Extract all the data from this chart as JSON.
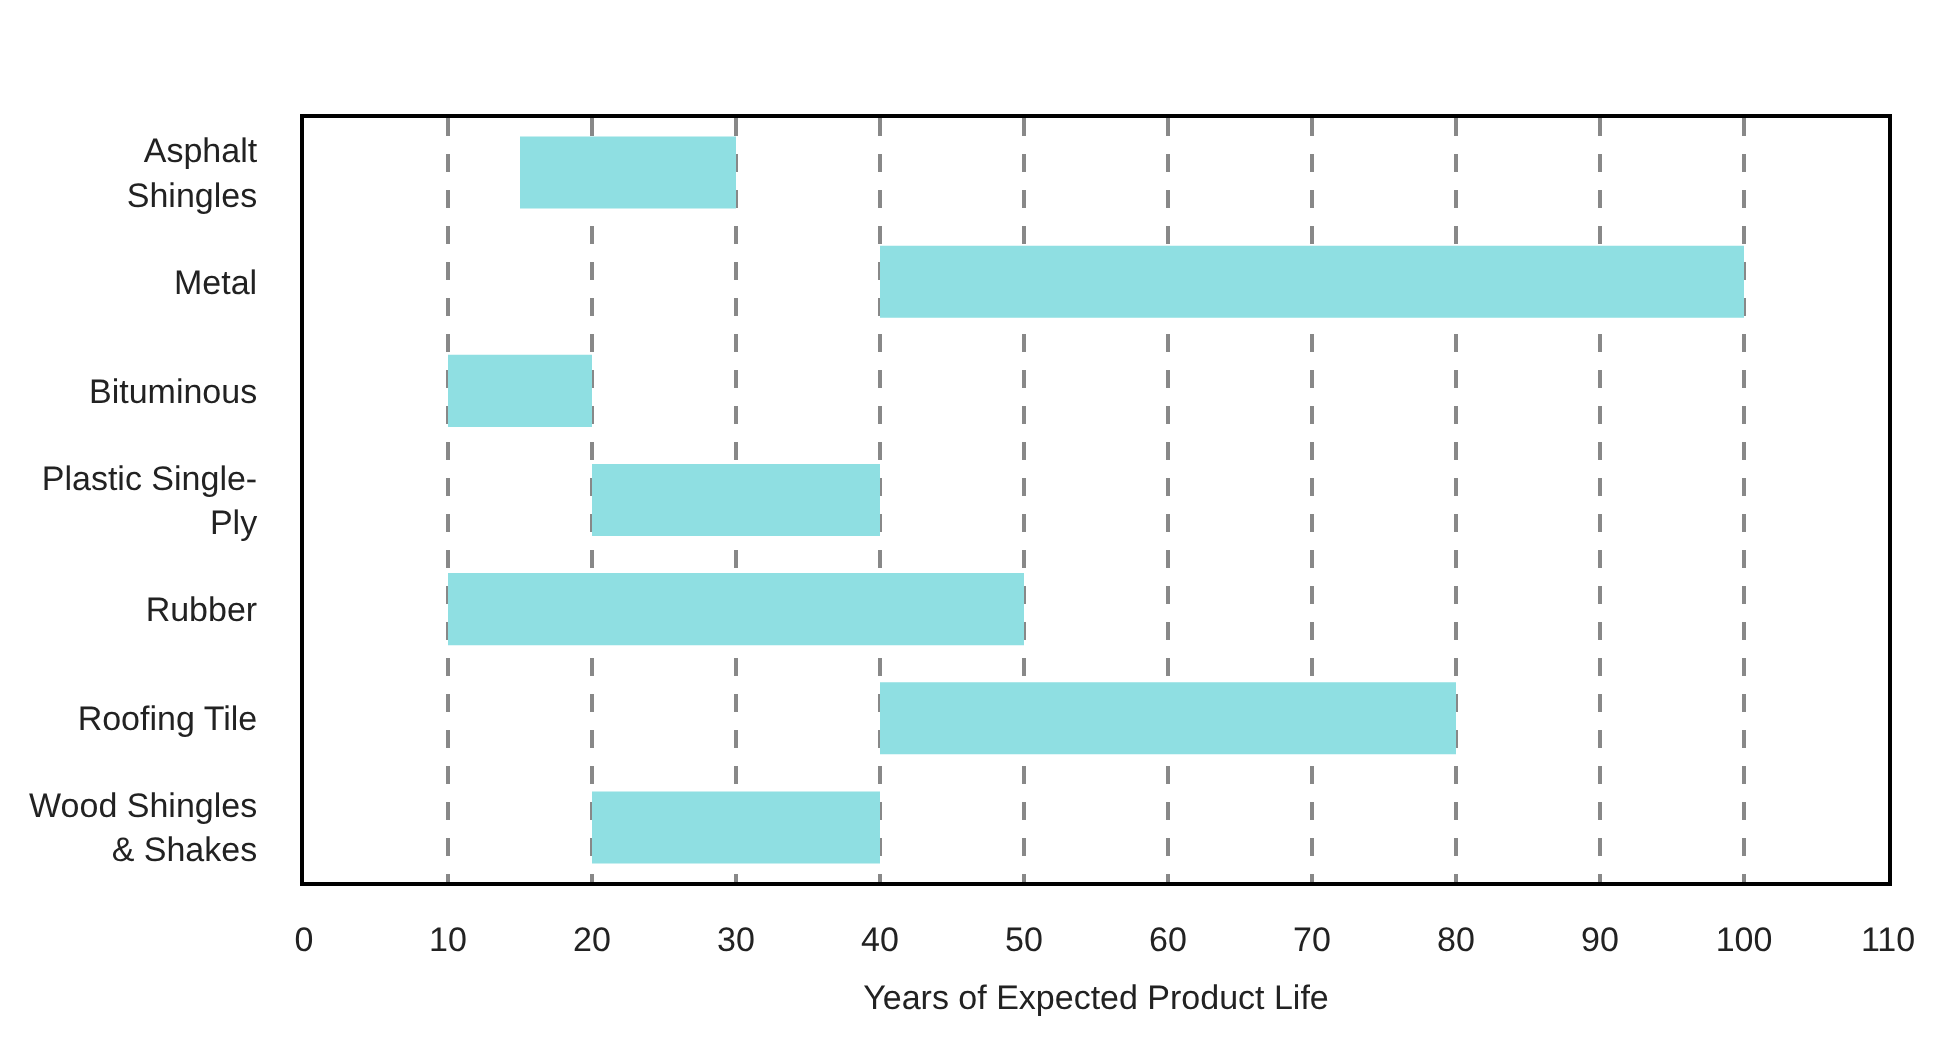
{
  "chart_data": {
    "type": "bar",
    "orientation": "horizontal",
    "categories": [
      "Asphalt Shingles",
      "Metal",
      "Bituminous",
      "Plastic Single-Ply",
      "Rubber",
      "Roofing Tile",
      "Wood Shingles & Shakes"
    ],
    "base": [
      15,
      40,
      10,
      20,
      10,
      40,
      20
    ],
    "values": [
      15,
      60,
      10,
      20,
      40,
      40,
      20
    ],
    "color": "#8fdfe2",
    "xlabel": "Years of Expected Product Life",
    "xlim": [
      0,
      110
    ],
    "xticks": [
      0,
      10,
      20,
      30,
      40,
      50,
      60,
      70,
      80,
      90,
      100,
      110
    ],
    "grid": "x"
  }
}
